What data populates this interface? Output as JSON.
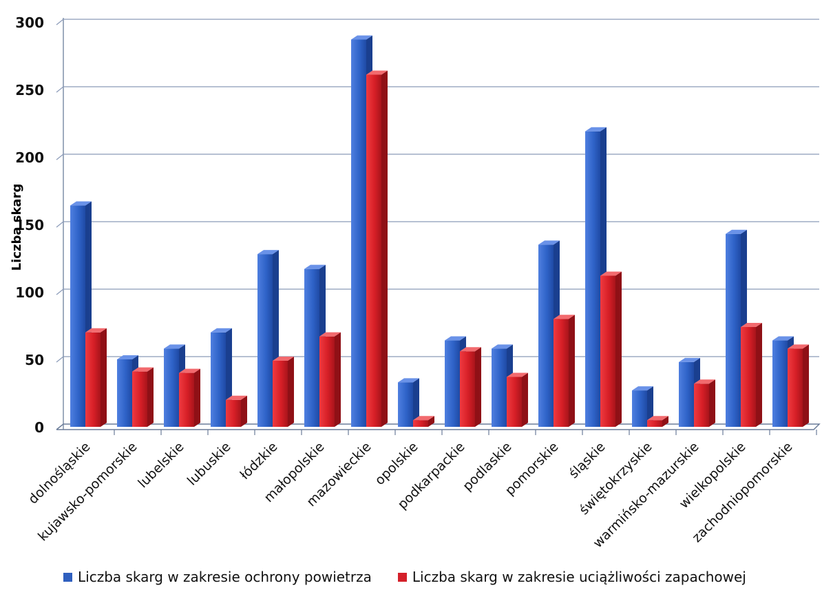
{
  "chart_data": {
    "type": "bar",
    "style": "3d-clustered-column",
    "title": "",
    "xlabel": "",
    "ylabel": "Liczba skarg",
    "ylim": [
      0,
      300
    ],
    "yticks": [
      0,
      50,
      100,
      150,
      200,
      250,
      300
    ],
    "grid": true,
    "legend_position": "bottom",
    "categories": [
      "dolnośląskie",
      "kujawsko-pomorskie",
      "lubelskie",
      "lubuskie",
      "łódzkie",
      "małopolskie",
      "mazowieckie",
      "opolskie",
      "podkarpackie",
      "podlaskie",
      "pomorskie",
      "śląskie",
      "świętokrzyskie",
      "warmińsko-mazurskie",
      "wielkopolskie",
      "zachodniopomorskie"
    ],
    "series": [
      {
        "name": "Liczba skarg w zakresie ochrony powietrza",
        "color": "#2f5fbf",
        "values": [
          164,
          50,
          58,
          70,
          128,
          117,
          287,
          33,
          64,
          58,
          135,
          219,
          27,
          48,
          143,
          64
        ]
      },
      {
        "name": "Liczba skarg w zakresie uciążliwości zapachowej",
        "color": "#d4202a",
        "values": [
          70,
          41,
          40,
          20,
          49,
          67,
          261,
          5,
          56,
          37,
          80,
          112,
          5,
          32,
          74,
          58
        ]
      }
    ]
  }
}
